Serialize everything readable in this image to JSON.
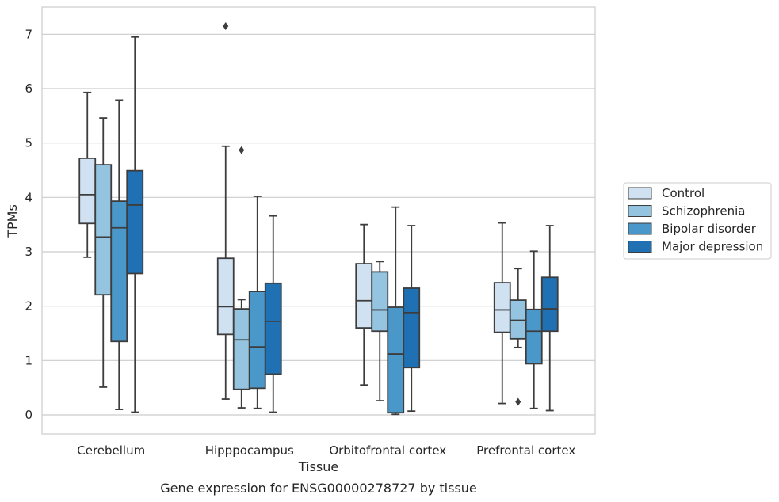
{
  "chart_data": {
    "type": "box",
    "caption": "Gene expression for ENSG00000278727 by tissue",
    "xlabel": "Tissue",
    "ylabel": "TPMs",
    "ylim": [
      -0.35,
      7.5
    ],
    "yticks": [
      0,
      1,
      2,
      3,
      4,
      5,
      6,
      7
    ],
    "grid": "horizontal",
    "legend_position": "right",
    "categories": [
      "Cerebellum",
      "Hipppocampus",
      "Orbitofrontal cortex",
      "Prefrontal cortex"
    ],
    "series": [
      {
        "name": "Control",
        "color": "#d0e1f2",
        "boxes": [
          {
            "whislo": 2.9,
            "q1": 3.52,
            "med": 4.05,
            "q3": 4.72,
            "whishi": 5.93,
            "fliers": []
          },
          {
            "whislo": 0.29,
            "q1": 1.48,
            "med": 1.99,
            "q3": 2.88,
            "whishi": 4.94,
            "fliers": [
              7.15
            ]
          },
          {
            "whislo": 0.55,
            "q1": 1.6,
            "med": 2.1,
            "q3": 2.78,
            "whishi": 3.5,
            "fliers": []
          },
          {
            "whislo": 0.21,
            "q1": 1.52,
            "med": 1.93,
            "q3": 2.43,
            "whishi": 3.53,
            "fliers": []
          }
        ]
      },
      {
        "name": "Schizophrenia",
        "color": "#94c4df",
        "boxes": [
          {
            "whislo": 0.51,
            "q1": 2.21,
            "med": 3.27,
            "q3": 4.6,
            "whishi": 5.46,
            "fliers": []
          },
          {
            "whislo": 0.13,
            "q1": 0.47,
            "med": 1.38,
            "q3": 1.95,
            "whishi": 2.12,
            "fliers": [
              4.87
            ]
          },
          {
            "whislo": 0.26,
            "q1": 1.54,
            "med": 1.93,
            "q3": 2.63,
            "whishi": 2.82,
            "fliers": []
          },
          {
            "whislo": 1.24,
            "q1": 1.4,
            "med": 1.74,
            "q3": 2.11,
            "whishi": 2.69,
            "fliers": [
              0.24
            ]
          }
        ]
      },
      {
        "name": "Bipolar disorder",
        "color": "#4a98c9",
        "boxes": [
          {
            "whislo": 0.1,
            "q1": 1.35,
            "med": 3.44,
            "q3": 3.93,
            "whishi": 5.79,
            "fliers": []
          },
          {
            "whislo": 0.12,
            "q1": 0.49,
            "med": 1.25,
            "q3": 2.27,
            "whishi": 4.02,
            "fliers": []
          },
          {
            "whislo": 0.01,
            "q1": 0.04,
            "med": 1.12,
            "q3": 1.98,
            "whishi": 3.82,
            "fliers": []
          },
          {
            "whislo": 0.12,
            "q1": 0.94,
            "med": 1.54,
            "q3": 1.94,
            "whishi": 3.01,
            "fliers": []
          }
        ]
      },
      {
        "name": "Major depression",
        "color": "#2070b4",
        "boxes": [
          {
            "whislo": 0.05,
            "q1": 2.6,
            "med": 3.86,
            "q3": 4.49,
            "whishi": 6.95,
            "fliers": []
          },
          {
            "whislo": 0.05,
            "q1": 0.75,
            "med": 1.72,
            "q3": 2.42,
            "whishi": 3.66,
            "fliers": []
          },
          {
            "whislo": 0.07,
            "q1": 0.87,
            "med": 1.88,
            "q3": 2.33,
            "whishi": 3.48,
            "fliers": []
          },
          {
            "whislo": 0.08,
            "q1": 1.54,
            "med": 1.95,
            "q3": 2.53,
            "whishi": 3.48,
            "fliers": []
          }
        ]
      }
    ]
  }
}
